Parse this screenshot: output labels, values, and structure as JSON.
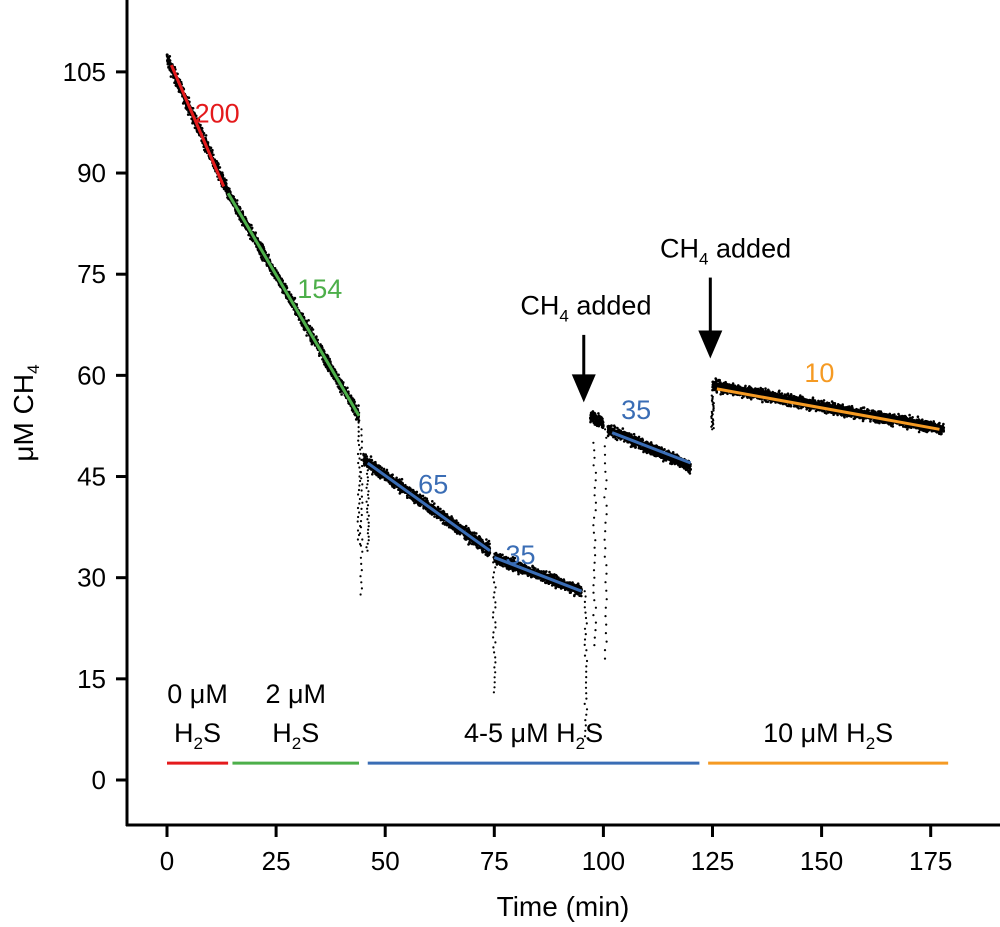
{
  "chart_data": {
    "type": "scatter",
    "xlabel": "Time (min)",
    "ylabel_main": "μM CH",
    "ylabel_sub": "4",
    "xlim": [
      0,
      180
    ],
    "ylim": [
      0,
      110
    ],
    "x_ticks": [
      0,
      25,
      50,
      75,
      100,
      125,
      150,
      175
    ],
    "y_ticks": [
      0,
      15,
      30,
      45,
      60,
      75,
      90,
      105
    ],
    "grid": false,
    "colors": {
      "red": "#e41a1c",
      "green": "#4daf4a",
      "blue": "#3a6db5",
      "orange": "#f59a23",
      "points": "#000000"
    },
    "measurement_segments": [
      {
        "x": [
          0,
          14
        ],
        "y": [
          107,
          87
        ],
        "noise": 1.2
      },
      {
        "x": [
          14,
          44
        ],
        "y": [
          87,
          54
        ],
        "noise": 1.1
      },
      {
        "x": [
          45,
          74
        ],
        "y": [
          47.5,
          34
        ],
        "noise": 1.0
      },
      {
        "x": [
          75,
          95
        ],
        "y": [
          33,
          28
        ],
        "noise": 0.9
      },
      {
        "x": [
          97,
          100
        ],
        "y": [
          54,
          53
        ],
        "noise": 0.9
      },
      {
        "x": [
          101,
          120
        ],
        "y": [
          52,
          46.5
        ],
        "noise": 0.9
      },
      {
        "x": [
          125,
          178
        ],
        "y": [
          58.5,
          52
        ],
        "noise": 0.9
      }
    ],
    "dips": [
      {
        "x": 44,
        "y_from": 53,
        "y_to": 35
      },
      {
        "x": 44.5,
        "y_from": 52,
        "y_to": 27.5
      },
      {
        "x": 46,
        "y_from": 48,
        "y_to": 34
      },
      {
        "x": 75,
        "y_from": 33,
        "y_to": 13
      },
      {
        "x": 96,
        "y_from": 28,
        "y_to": 6.5
      },
      {
        "x": 98,
        "y_from": 50,
        "y_to": 20
      },
      {
        "x": 100.5,
        "y_from": 52,
        "y_to": 18
      },
      {
        "x": 125,
        "y_from": 57,
        "y_to": 52
      }
    ],
    "fit_lines": [
      {
        "x": [
          1,
          13
        ],
        "y": [
          106,
          88
        ],
        "color": "red",
        "label": "200",
        "label_x": 11.5,
        "label_y": 97.5
      },
      {
        "x": [
          14,
          44
        ],
        "y": [
          87,
          54
        ],
        "color": "green",
        "label": "154",
        "label_x": 35,
        "label_y": 71.5
      },
      {
        "x": [
          46,
          74
        ],
        "y": [
          47,
          34
        ],
        "color": "blue",
        "label": "65",
        "label_x": 61,
        "label_y": 42.5
      },
      {
        "x": [
          75,
          95
        ],
        "y": [
          33,
          28
        ],
        "color": "blue",
        "label": "35",
        "label_x": 81,
        "label_y": 32
      },
      {
        "x": [
          102,
          120
        ],
        "y": [
          51.5,
          47
        ],
        "color": "blue",
        "label": "35",
        "label_x": 107.5,
        "label_y": 53.5
      },
      {
        "x": [
          126,
          177
        ],
        "y": [
          58,
          52
        ],
        "color": "orange",
        "label": "10",
        "label_x": 149.5,
        "label_y": 59
      }
    ],
    "annotations": [
      {
        "text_main": "CH",
        "text_sub": "4",
        "text_tail": " added",
        "x": 96,
        "y": 69,
        "arrow_x": 95.5,
        "arrow_y_from": 66,
        "arrow_y_to": 56
      },
      {
        "text_main": "CH",
        "text_sub": "4",
        "text_tail": " added",
        "x": 128,
        "y": 77.5,
        "arrow_x": 124.5,
        "arrow_y_from": 74.5,
        "arrow_y_to": 62.5
      }
    ],
    "condition_bars": [
      {
        "x": [
          0,
          14
        ],
        "color": "red",
        "line1": "0 μM",
        "line2_main": "H",
        "line2_sub": "2",
        "line2_tail": "S"
      },
      {
        "x": [
          15,
          44
        ],
        "color": "green",
        "line1": "2 μM",
        "line2_main": "H",
        "line2_sub": "2",
        "line2_tail": "S"
      },
      {
        "x": [
          46,
          122
        ],
        "color": "blue",
        "line1": "",
        "line2_main": "4-5 μM H",
        "line2_sub": "2",
        "line2_tail": "S"
      },
      {
        "x": [
          124,
          179
        ],
        "color": "orange",
        "line1": "",
        "line2_main": "10 μM H",
        "line2_sub": "2",
        "line2_tail": "S"
      }
    ],
    "condition_bar_y": 2.5
  }
}
